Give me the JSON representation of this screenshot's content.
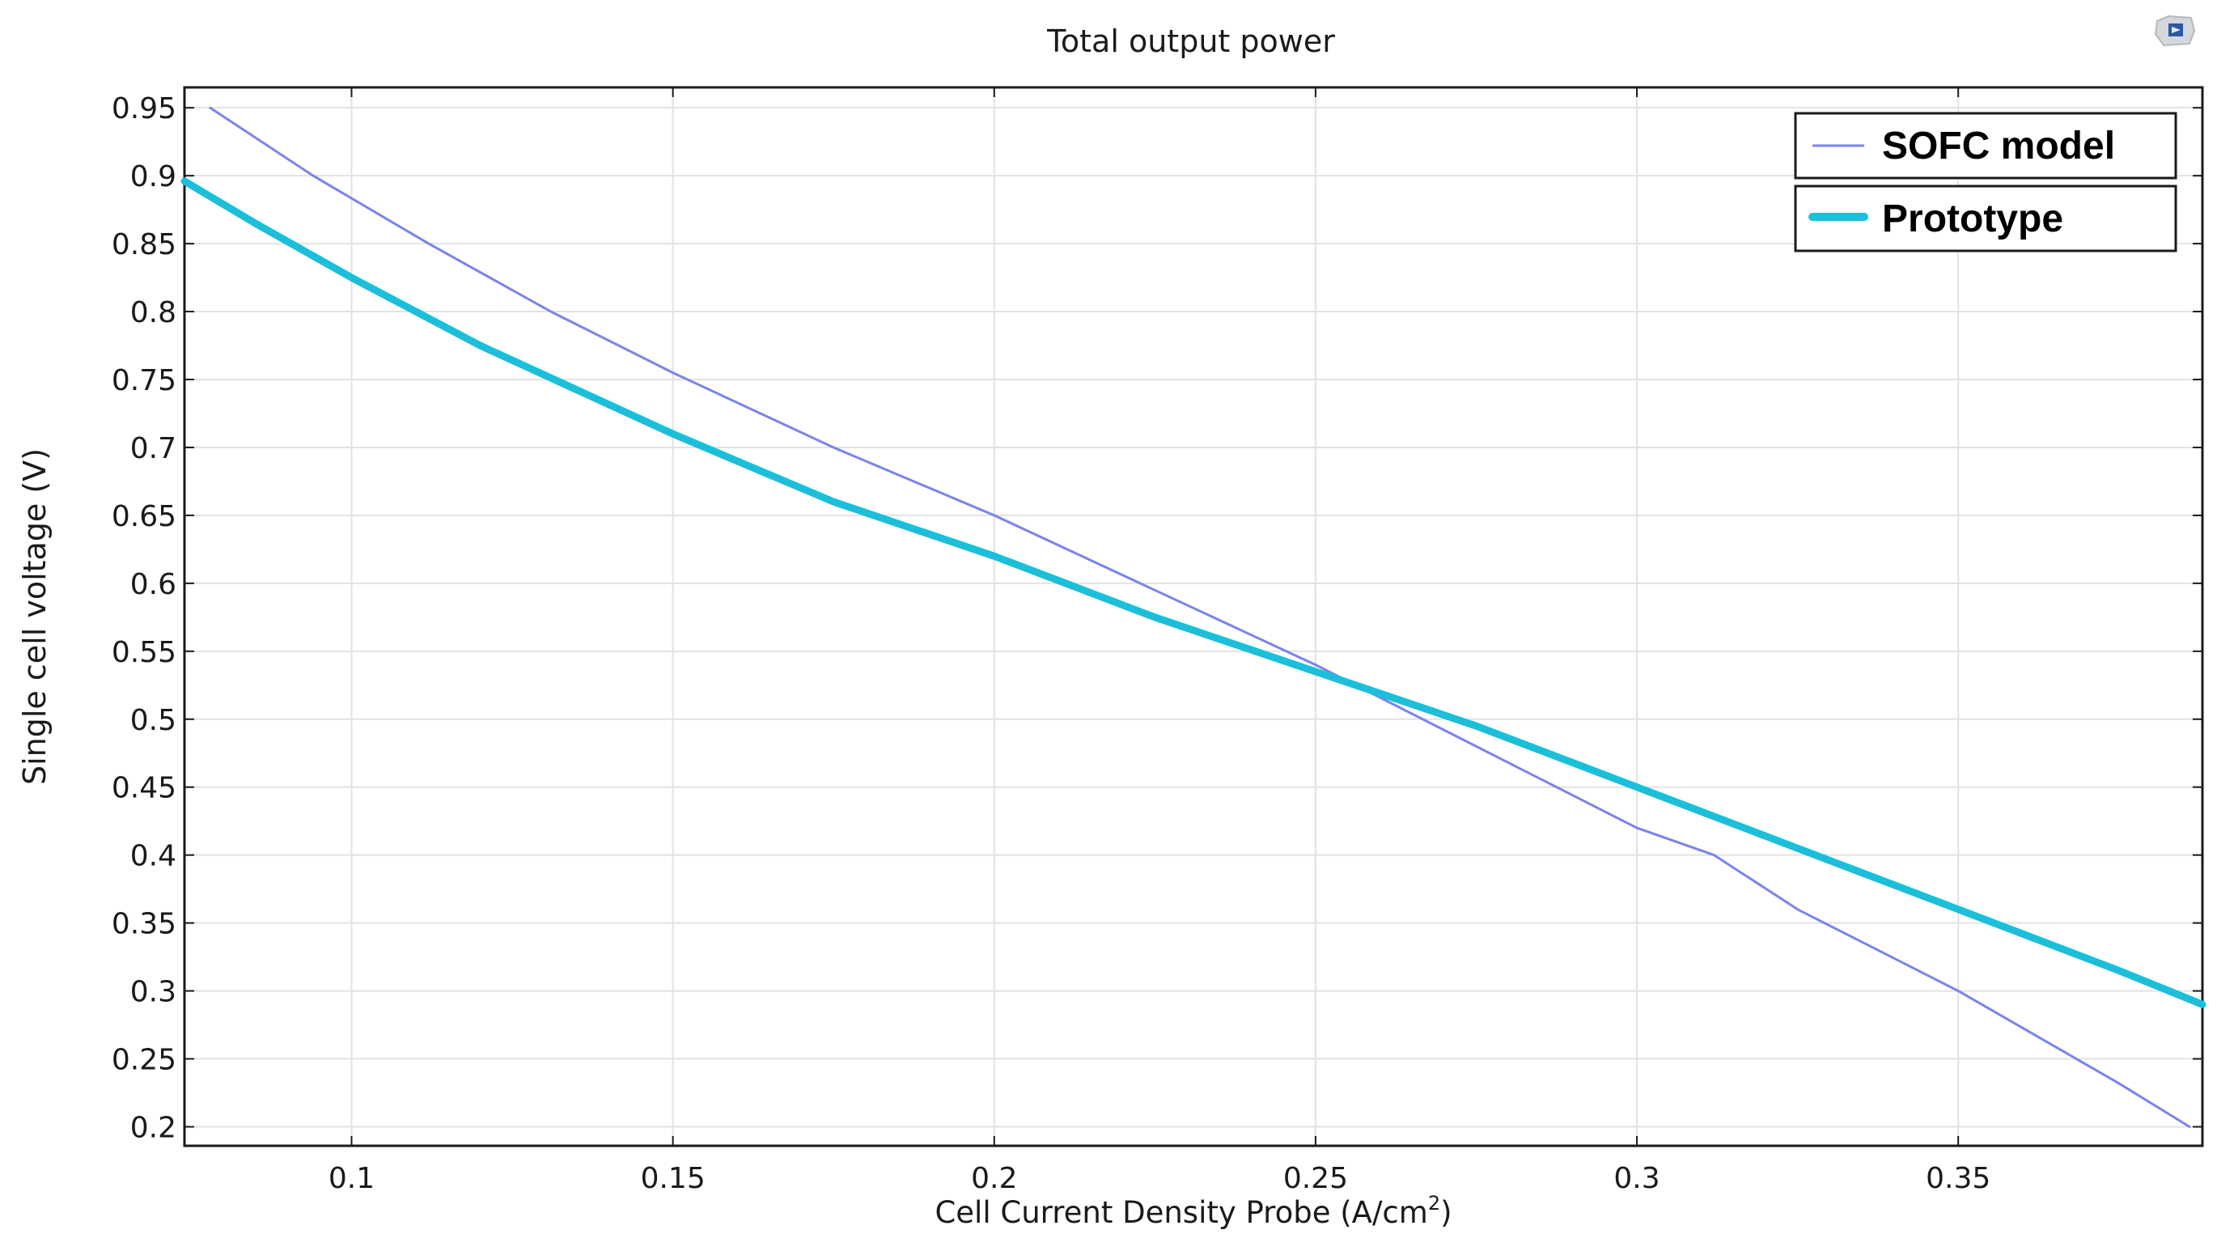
{
  "app": {
    "icon": "comsol-logo-icon"
  },
  "colors": {
    "background": "#ffffff",
    "grid": "#e2e2e2",
    "axis": "#1a1a1a",
    "sofc": "#7b83ee",
    "prototype": "#1bbfd9"
  },
  "chart_data": {
    "type": "line",
    "title": "Total output power",
    "xlabel": "Cell Current Density Probe (A/cm",
    "xlabel_sup": "2",
    "xlabel_end": ")",
    "ylabel": "Single cell voltage (V)",
    "xlim": [
      0.074,
      0.388
    ],
    "ylim": [
      0.186,
      0.965
    ],
    "x_ticks": [
      0.1,
      0.15,
      0.2,
      0.25,
      0.3,
      0.35
    ],
    "x_tick_labels": [
      "0.1",
      "0.15",
      "0.2",
      "0.25",
      "0.3",
      "0.35"
    ],
    "y_ticks": [
      0.2,
      0.25,
      0.3,
      0.35,
      0.4,
      0.45,
      0.5,
      0.55,
      0.6,
      0.65,
      0.7,
      0.75,
      0.8,
      0.85,
      0.9,
      0.95
    ],
    "y_tick_labels": [
      "0.2",
      "0.25",
      "0.3",
      "0.35",
      "0.4",
      "0.45",
      "0.5",
      "0.55",
      "0.6",
      "0.65",
      "0.7",
      "0.75",
      "0.8",
      "0.85",
      "0.9",
      "0.95"
    ],
    "grid": true,
    "legend_position": "top-right",
    "series": [
      {
        "name": "SOFC model",
        "style": "thin",
        "x": [
          0.078,
          0.094,
          0.112,
          0.131,
          0.15,
          0.175,
          0.2,
          0.225,
          0.25,
          0.275,
          0.3,
          0.312,
          0.325,
          0.35,
          0.375,
          0.386
        ],
        "y": [
          0.95,
          0.9,
          0.85,
          0.8,
          0.755,
          0.7,
          0.65,
          0.595,
          0.54,
          0.48,
          0.42,
          0.4,
          0.36,
          0.3,
          0.232,
          0.2
        ]
      },
      {
        "name": "Prototype",
        "style": "thick",
        "x": [
          0.074,
          0.085,
          0.1,
          0.12,
          0.15,
          0.175,
          0.2,
          0.225,
          0.25,
          0.275,
          0.3,
          0.325,
          0.35,
          0.375,
          0.388
        ],
        "y": [
          0.896,
          0.865,
          0.825,
          0.775,
          0.71,
          0.66,
          0.62,
          0.575,
          0.535,
          0.495,
          0.45,
          0.405,
          0.36,
          0.315,
          0.29
        ]
      }
    ]
  }
}
